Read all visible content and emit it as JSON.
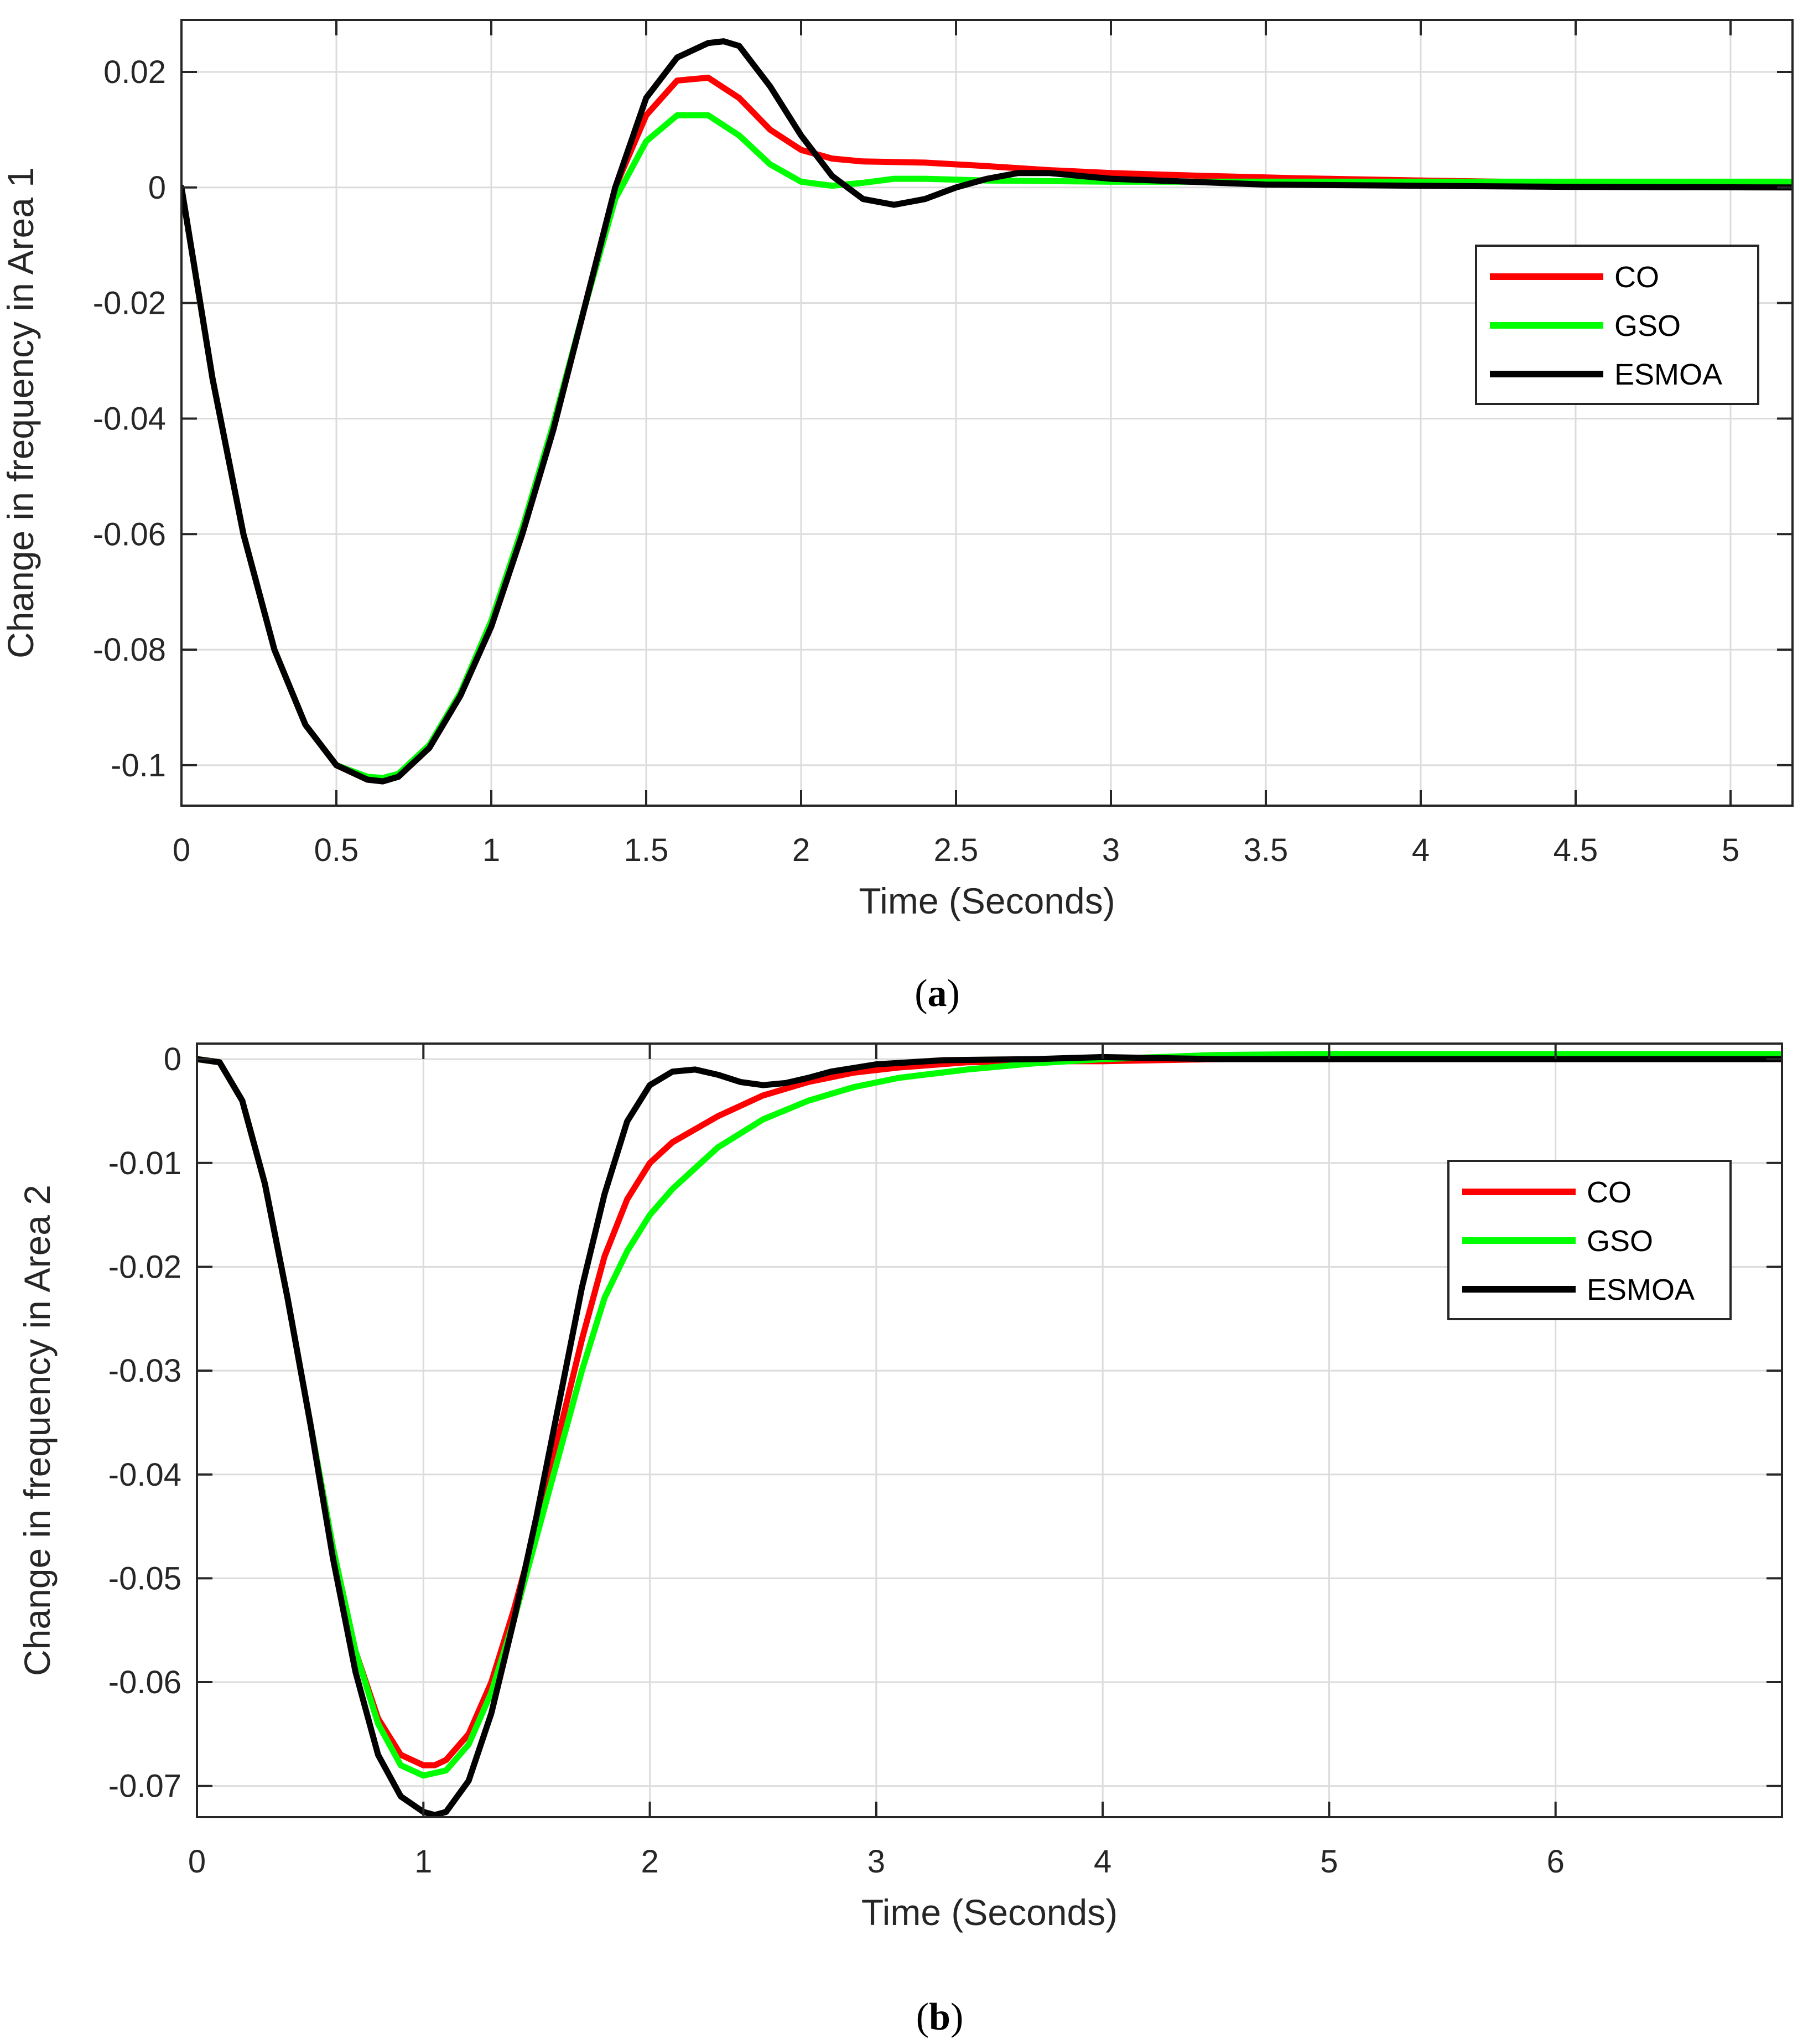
{
  "chart_data": [
    {
      "type": "line",
      "caption_letter": "a",
      "xlabel": "Time (Seconds)",
      "ylabel": "Change in frequency in Area 1",
      "xlim": [
        0,
        5.2
      ],
      "ylim": [
        -0.107,
        0.029
      ],
      "xticks": [
        0,
        0.5,
        1,
        1.5,
        2,
        2.5,
        3,
        3.5,
        4,
        4.5,
        5
      ],
      "xtick_labels": [
        "0",
        "0.5",
        "1",
        "1.5",
        "2",
        "2.5",
        "3",
        "3.5",
        "4",
        "4.5",
        "5"
      ],
      "yticks": [
        -0.1,
        -0.08,
        -0.06,
        -0.04,
        -0.02,
        0,
        0.02
      ],
      "ytick_labels": [
        "-0.1",
        "-0.08",
        "-0.06",
        "-0.04",
        "-0.02",
        "0",
        "0.02"
      ],
      "grid": true,
      "legend_position": "middle-right",
      "series": [
        {
          "name": "CO",
          "color": "#ff0000",
          "x": [
            0,
            0.1,
            0.2,
            0.3,
            0.4,
            0.5,
            0.6,
            0.65,
            0.7,
            0.8,
            0.9,
            1.0,
            1.1,
            1.2,
            1.3,
            1.4,
            1.5,
            1.6,
            1.7,
            1.8,
            1.9,
            2.0,
            2.1,
            2.2,
            2.4,
            2.6,
            2.8,
            3.0,
            3.3,
            3.6,
            4.0,
            4.5,
            5.2
          ],
          "y": [
            0,
            -0.033,
            -0.06,
            -0.08,
            -0.093,
            -0.1,
            -0.1025,
            -0.1027,
            -0.102,
            -0.097,
            -0.088,
            -0.076,
            -0.06,
            -0.042,
            -0.021,
            0.0,
            0.0125,
            0.0185,
            0.019,
            0.0155,
            0.01,
            0.0065,
            0.005,
            0.0045,
            0.0043,
            0.0037,
            0.003,
            0.0025,
            0.002,
            0.0016,
            0.0012,
            0.0008,
            0.0005
          ]
        },
        {
          "name": "GSO",
          "color": "#00ff00",
          "x": [
            0,
            0.1,
            0.2,
            0.3,
            0.4,
            0.5,
            0.6,
            0.65,
            0.7,
            0.8,
            0.9,
            1.0,
            1.1,
            1.2,
            1.3,
            1.4,
            1.5,
            1.6,
            1.7,
            1.8,
            1.9,
            2.0,
            2.1,
            2.2,
            2.3,
            2.4,
            2.6,
            2.8,
            3.0,
            3.5,
            4.0,
            4.5,
            5.2
          ],
          "y": [
            0,
            -0.033,
            -0.06,
            -0.08,
            -0.093,
            -0.1,
            -0.102,
            -0.1022,
            -0.1015,
            -0.0965,
            -0.0875,
            -0.075,
            -0.059,
            -0.041,
            -0.021,
            -0.002,
            0.008,
            0.0125,
            0.0125,
            0.009,
            0.004,
            0.001,
            0.0003,
            0.0008,
            0.0015,
            0.0015,
            0.0012,
            0.0011,
            0.001,
            0.001,
            0.001,
            0.001,
            0.001
          ]
        },
        {
          "name": "ESMOA",
          "color": "#000000",
          "x": [
            0,
            0.1,
            0.2,
            0.3,
            0.4,
            0.5,
            0.6,
            0.65,
            0.7,
            0.8,
            0.9,
            1.0,
            1.1,
            1.2,
            1.3,
            1.4,
            1.5,
            1.6,
            1.7,
            1.75,
            1.8,
            1.9,
            2.0,
            2.1,
            2.2,
            2.3,
            2.4,
            2.5,
            2.6,
            2.7,
            2.8,
            3.0,
            3.5,
            4.0,
            4.5,
            5.2
          ],
          "y": [
            0,
            -0.033,
            -0.06,
            -0.08,
            -0.093,
            -0.1,
            -0.1025,
            -0.1028,
            -0.102,
            -0.097,
            -0.088,
            -0.076,
            -0.06,
            -0.042,
            -0.021,
            0.0,
            0.0155,
            0.0225,
            0.025,
            0.0253,
            0.0245,
            0.0175,
            0.009,
            0.002,
            -0.002,
            -0.003,
            -0.002,
            0.0,
            0.0015,
            0.0025,
            0.0025,
            0.0015,
            0.0005,
            0.0003,
            0.0001,
            0.0
          ]
        }
      ]
    },
    {
      "type": "line",
      "caption_letter": "b",
      "xlabel": "Time (Seconds)",
      "ylabel": "Change in frequency in Area 2",
      "xlim": [
        0,
        7
      ],
      "ylim": [
        -0.073,
        0.0015
      ],
      "xticks": [
        0,
        1,
        2,
        3,
        4,
        5,
        6
      ],
      "xtick_labels": [
        "0",
        "1",
        "2",
        "3",
        "4",
        "5",
        "6"
      ],
      "yticks": [
        -0.07,
        -0.06,
        -0.05,
        -0.04,
        -0.03,
        -0.02,
        -0.01,
        0
      ],
      "ytick_labels": [
        "-0.07",
        "-0.06",
        "-0.05",
        "-0.04",
        "-0.03",
        "-0.02",
        "-0.01",
        "0"
      ],
      "grid": true,
      "legend_position": "middle-right",
      "series": [
        {
          "name": "CO",
          "color": "#ff0000",
          "x": [
            0,
            0.1,
            0.2,
            0.3,
            0.4,
            0.5,
            0.6,
            0.7,
            0.8,
            0.9,
            1.0,
            1.05,
            1.1,
            1.2,
            1.3,
            1.4,
            1.5,
            1.6,
            1.7,
            1.8,
            1.9,
            2.0,
            2.1,
            2.3,
            2.5,
            2.7,
            2.9,
            3.1,
            3.4,
            3.7,
            4.0,
            4.5,
            5.0,
            6.0,
            7.0
          ],
          "y": [
            0,
            -0.0003,
            -0.004,
            -0.012,
            -0.023,
            -0.035,
            -0.047,
            -0.057,
            -0.0635,
            -0.067,
            -0.068,
            -0.068,
            -0.0675,
            -0.065,
            -0.06,
            -0.053,
            -0.045,
            -0.036,
            -0.027,
            -0.019,
            -0.0135,
            -0.01,
            -0.008,
            -0.0055,
            -0.0035,
            -0.0022,
            -0.0013,
            -0.0008,
            -0.0003,
            -0.0002,
            -0.0002,
            0.0,
            0.0001,
            0.0001,
            0.0001
          ]
        },
        {
          "name": "GSO",
          "color": "#00ff00",
          "x": [
            0,
            0.1,
            0.2,
            0.3,
            0.4,
            0.5,
            0.6,
            0.7,
            0.8,
            0.9,
            1.0,
            1.1,
            1.2,
            1.3,
            1.4,
            1.5,
            1.6,
            1.7,
            1.8,
            1.9,
            2.0,
            2.1,
            2.3,
            2.5,
            2.7,
            2.9,
            3.1,
            3.4,
            3.7,
            4.0,
            4.5,
            5.0,
            6.0,
            7.0
          ],
          "y": [
            0,
            -0.0003,
            -0.004,
            -0.012,
            -0.023,
            -0.035,
            -0.047,
            -0.057,
            -0.064,
            -0.068,
            -0.069,
            -0.0685,
            -0.066,
            -0.061,
            -0.054,
            -0.046,
            -0.038,
            -0.03,
            -0.023,
            -0.0185,
            -0.015,
            -0.0125,
            -0.0085,
            -0.0058,
            -0.004,
            -0.0027,
            -0.0018,
            -0.001,
            -0.0004,
            0.0,
            0.0004,
            0.0005,
            0.0005,
            0.0005
          ]
        },
        {
          "name": "ESMOA",
          "color": "#000000",
          "x": [
            0,
            0.1,
            0.2,
            0.3,
            0.4,
            0.5,
            0.6,
            0.7,
            0.8,
            0.9,
            1.0,
            1.05,
            1.1,
            1.2,
            1.3,
            1.4,
            1.5,
            1.6,
            1.7,
            1.8,
            1.9,
            2.0,
            2.1,
            2.2,
            2.3,
            2.4,
            2.5,
            2.6,
            2.7,
            2.8,
            3.0,
            3.3,
            3.7,
            4.0,
            4.5,
            5.0,
            6.0,
            7.0
          ],
          "y": [
            0,
            -0.0003,
            -0.004,
            -0.012,
            -0.023,
            -0.035,
            -0.048,
            -0.059,
            -0.067,
            -0.071,
            -0.0725,
            -0.0728,
            -0.0725,
            -0.0695,
            -0.063,
            -0.054,
            -0.044,
            -0.033,
            -0.022,
            -0.013,
            -0.006,
            -0.0025,
            -0.0012,
            -0.001,
            -0.0015,
            -0.0022,
            -0.0025,
            -0.0023,
            -0.0018,
            -0.0012,
            -0.0005,
            -0.0001,
            0.0,
            0.0002,
            0.0,
            0.0,
            0.0,
            0.0
          ]
        }
      ]
    }
  ]
}
